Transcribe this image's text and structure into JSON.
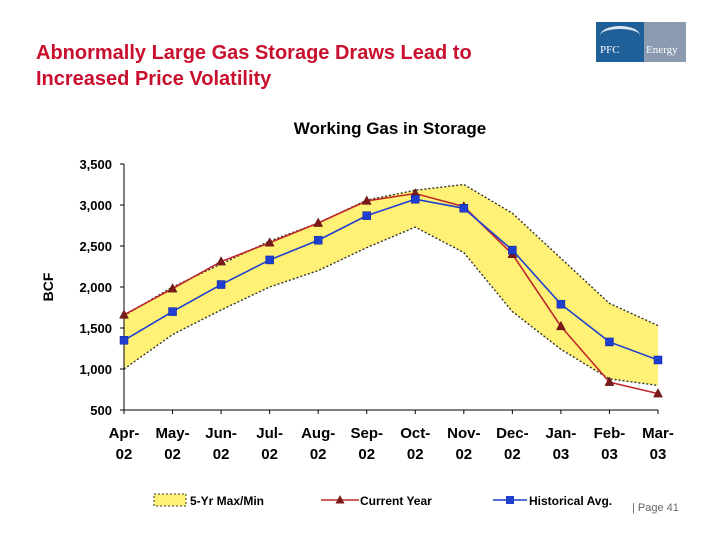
{
  "slide": {
    "title_line1": "Abnormally Large Gas Storage Draws Lead to",
    "title_line2": "Increased Price Volatility",
    "page_label": "| Page 41",
    "logo_text_left": "PFC",
    "logo_text_right": "Energy",
    "logo_color": "#1f5f9a"
  },
  "chart_data": {
    "type": "line",
    "title": "Working Gas in Storage",
    "ylabel": "BCF",
    "xlabel": "",
    "ylim": [
      500,
      3500
    ],
    "yticks": [
      "500",
      "1,000",
      "1,500",
      "2,000",
      "2,500",
      "3,000",
      "3,500"
    ],
    "grid": false,
    "legend_position": "bottom",
    "categories": [
      [
        "Apr-",
        "02"
      ],
      [
        "May-",
        "02"
      ],
      [
        "Jun-",
        "02"
      ],
      [
        "Jul-",
        "02"
      ],
      [
        "Aug-",
        "02"
      ],
      [
        "Sep-",
        "02"
      ],
      [
        "Oct-",
        "02"
      ],
      [
        "Nov-",
        "02"
      ],
      [
        "Dec-",
        "02"
      ],
      [
        "Jan-",
        "03"
      ],
      [
        "Feb-",
        "03"
      ],
      [
        "Mar-",
        "03"
      ]
    ],
    "band": {
      "name": "5-Yr Max/Min",
      "color": "#fff176",
      "max": [
        1650,
        2000,
        2280,
        2560,
        2780,
        3060,
        3180,
        3250,
        2900,
        2350,
        1800,
        1530
      ],
      "min": [
        1000,
        1420,
        1720,
        2000,
        2200,
        2480,
        2730,
        2420,
        1700,
        1240,
        880,
        800
      ]
    },
    "series": [
      {
        "name": "Current Year",
        "color": "#c0282d",
        "marker": "triangle",
        "values": [
          1660,
          1980,
          2310,
          2540,
          2780,
          3050,
          3140,
          2980,
          2400,
          1520,
          840,
          700
        ]
      },
      {
        "name": "Historical Avg.",
        "color": "#1f3fd0",
        "marker": "square",
        "values": [
          1350,
          1700,
          2030,
          2330,
          2570,
          2870,
          3070,
          2960,
          2450,
          1790,
          1330,
          1110
        ]
      }
    ]
  }
}
